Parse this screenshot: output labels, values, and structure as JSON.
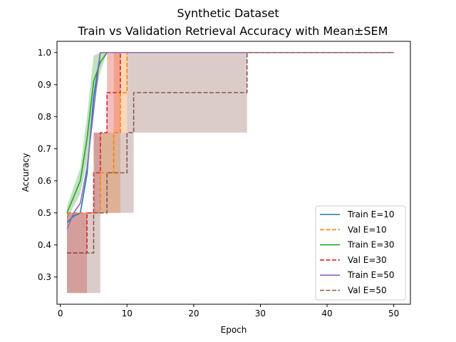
{
  "chart_data": {
    "type": "line",
    "title": "Synthetic Dataset",
    "subtitle": "Train vs Validation Retrieval Accuracy with Mean±SEM",
    "xlabel": "Epoch",
    "ylabel": "Accuracy",
    "xlim": [
      -0.5,
      52.5
    ],
    "ylim": [
      0.215,
      1.035
    ],
    "xticks": [
      0,
      10,
      20,
      30,
      40,
      50
    ],
    "yticks": [
      0.3,
      0.4,
      0.5,
      0.6,
      0.7,
      0.8,
      0.9,
      1.0
    ],
    "xtick_labels": [
      "0",
      "10",
      "20",
      "30",
      "40",
      "50"
    ],
    "ytick_labels": [
      "0.3",
      "0.4",
      "0.5",
      "0.6",
      "0.7",
      "0.8",
      "0.9",
      "1.0"
    ],
    "legend_position": "lower-right",
    "series": [
      {
        "name": "Train E=10",
        "color": "#1f77b4",
        "dash": false,
        "band": false,
        "x": [
          1,
          2,
          3,
          4,
          5,
          6,
          7,
          50
        ],
        "y": [
          0.47,
          0.49,
          0.5,
          0.62,
          0.86,
          1.0,
          1.0,
          1.0
        ],
        "lower": [],
        "upper": []
      },
      {
        "name": "Val E=10",
        "color": "#ff7f0e",
        "dash": true,
        "band": true,
        "step": true,
        "x": [
          1,
          2,
          3,
          4,
          5,
          6,
          7,
          8,
          9,
          10,
          50
        ],
        "y": [
          0.5,
          0.5,
          0.5,
          0.5,
          0.5,
          0.625,
          0.625,
          0.75,
          0.875,
          1.0,
          1.0
        ],
        "lower": [
          0.5,
          0.5,
          0.5,
          0.5,
          0.5,
          0.5,
          0.5,
          0.5,
          0.75,
          1.0,
          1.0
        ],
        "upper": [
          0.5,
          0.5,
          0.5,
          0.5,
          0.5,
          0.75,
          0.75,
          1.0,
          1.0,
          1.0,
          1.0
        ]
      },
      {
        "name": "Train E=30",
        "color": "#2ca02c",
        "dash": false,
        "band": true,
        "x": [
          1,
          2,
          3,
          4,
          5,
          6,
          7,
          8,
          50
        ],
        "y": [
          0.5,
          0.55,
          0.6,
          0.73,
          0.91,
          0.97,
          1.0,
          1.0,
          1.0
        ],
        "lower": [
          0.48,
          0.52,
          0.56,
          0.66,
          0.84,
          0.94,
          1.0,
          1.0,
          1.0
        ],
        "upper": [
          0.52,
          0.58,
          0.64,
          0.8,
          0.99,
          1.0,
          1.0,
          1.0,
          1.0
        ]
      },
      {
        "name": "Val E=30",
        "color": "#d62728",
        "dash": true,
        "band": true,
        "step": true,
        "x": [
          1,
          2,
          3,
          4,
          5,
          6,
          7,
          8,
          9,
          50
        ],
        "y": [
          0.375,
          0.375,
          0.375,
          0.5,
          0.625,
          0.75,
          0.875,
          0.875,
          1.0,
          1.0
        ],
        "lower": [
          0.25,
          0.25,
          0.25,
          0.5,
          0.5,
          0.75,
          0.75,
          0.75,
          1.0,
          1.0
        ],
        "upper": [
          0.5,
          0.5,
          0.5,
          0.5,
          0.75,
          0.75,
          1.0,
          1.0,
          1.0,
          1.0
        ]
      },
      {
        "name": "Train E=50",
        "color": "#9467bd",
        "dash": false,
        "band": false,
        "x": [
          1,
          2,
          3,
          4,
          5,
          6,
          50
        ],
        "y": [
          0.45,
          0.5,
          0.53,
          0.64,
          0.82,
          1.0,
          1.0
        ],
        "lower": [],
        "upper": []
      },
      {
        "name": "Val E=50",
        "color": "#8c564b",
        "dash": true,
        "band": true,
        "step": true,
        "x": [
          1,
          2,
          3,
          4,
          5,
          6,
          7,
          8,
          9,
          10,
          11,
          27,
          28,
          50
        ],
        "y": [
          0.375,
          0.375,
          0.375,
          0.375,
          0.5,
          0.5,
          0.625,
          0.625,
          0.625,
          0.75,
          0.875,
          0.875,
          1.0,
          1.0
        ],
        "lower": [
          0.25,
          0.25,
          0.25,
          0.25,
          0.25,
          0.5,
          0.5,
          0.5,
          0.5,
          0.5,
          0.75,
          0.75,
          1.0,
          1.0
        ],
        "upper": [
          0.5,
          0.5,
          0.5,
          0.5,
          0.75,
          0.75,
          0.75,
          0.75,
          0.75,
          1.0,
          1.0,
          1.0,
          1.0,
          1.0
        ]
      }
    ]
  }
}
